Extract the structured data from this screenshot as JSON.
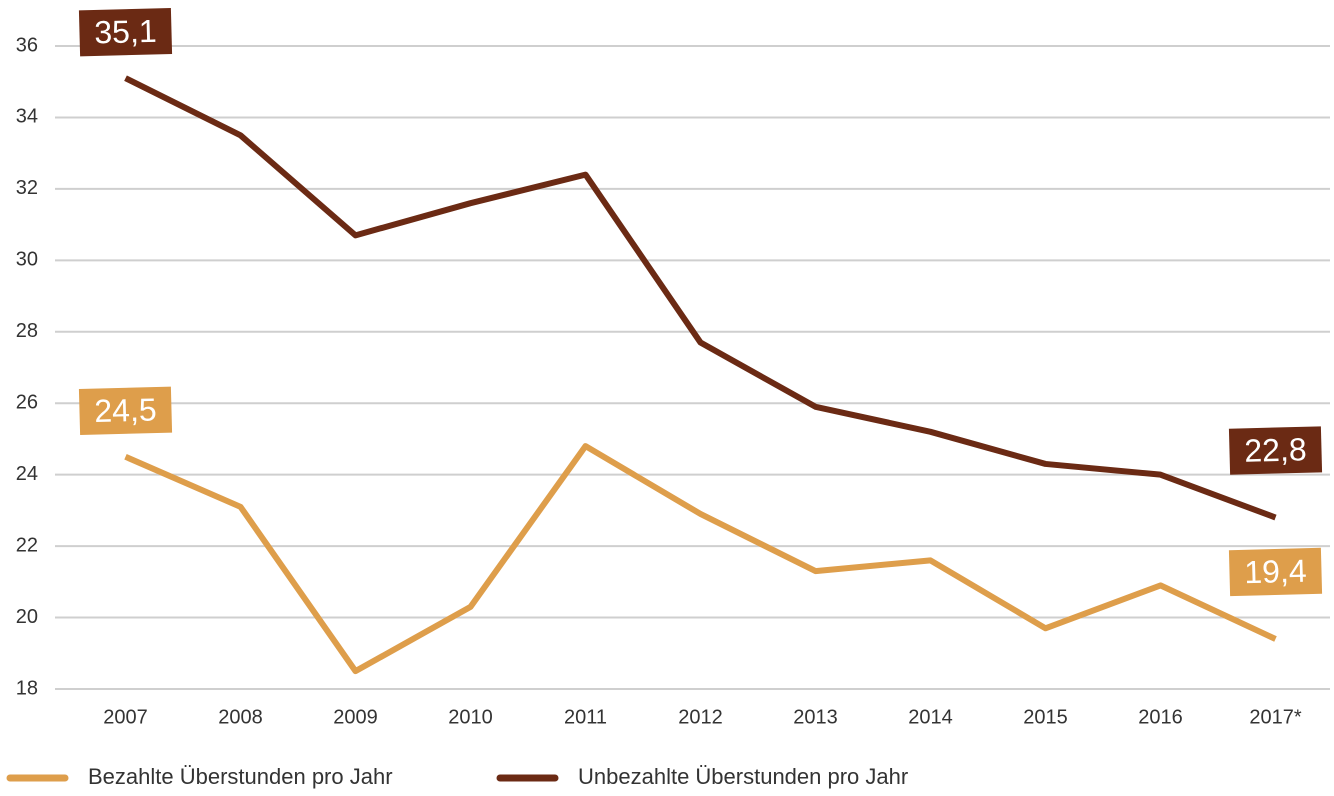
{
  "chart_data": {
    "type": "line",
    "categories": [
      "2007",
      "2008",
      "2009",
      "2010",
      "2011",
      "2012",
      "2013",
      "2014",
      "2015",
      "2016",
      "2017*"
    ],
    "series": [
      {
        "name": "Bezahlte Überstunden pro Jahr",
        "color": "#de9e4b",
        "values": [
          24.5,
          23.1,
          18.5,
          20.3,
          24.8,
          22.9,
          21.3,
          21.6,
          19.7,
          20.9,
          19.4
        ],
        "value_labels": [
          "24,5",
          null,
          null,
          null,
          null,
          null,
          null,
          null,
          null,
          null,
          "19,4"
        ]
      },
      {
        "name": "Unbezahlte Überstunden pro Jahr",
        "color": "#6b2a14",
        "values": [
          35.1,
          33.5,
          30.7,
          31.6,
          32.4,
          27.7,
          25.9,
          25.2,
          24.3,
          24.0,
          22.8
        ],
        "value_labels": [
          "35,1",
          null,
          null,
          null,
          null,
          null,
          null,
          null,
          null,
          null,
          "22,8"
        ]
      }
    ],
    "ylim": [
      18,
      36
    ],
    "yticks": [
      18,
      20,
      22,
      24,
      26,
      28,
      30,
      32,
      34,
      36
    ],
    "grid": true
  }
}
